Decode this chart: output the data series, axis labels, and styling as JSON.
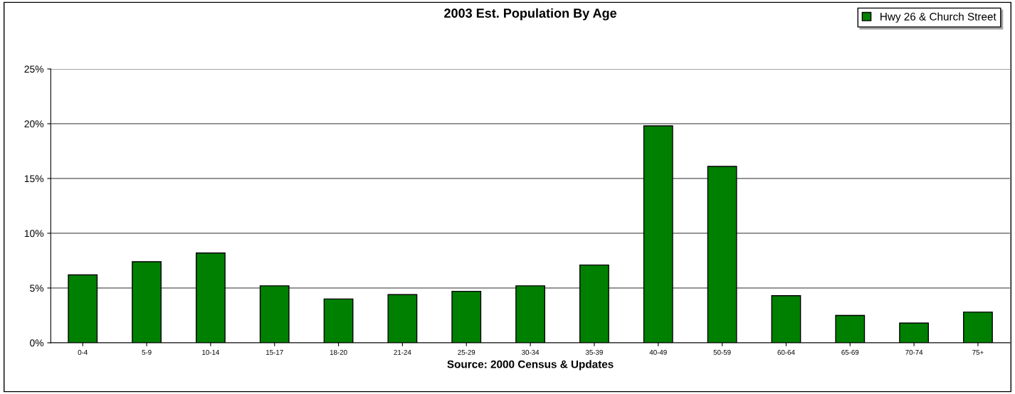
{
  "chart_data": {
    "type": "bar",
    "title": "2003 Est. Population By Age",
    "xlabel": "Source: 2000 Census & Updates",
    "categories": [
      "0-4",
      "5-9",
      "10-14",
      "15-17",
      "18-20",
      "21-24",
      "25-29",
      "30-34",
      "35-39",
      "40-49",
      "50-59",
      "60-64",
      "65-69",
      "70-74",
      "75+"
    ],
    "series": [
      {
        "name": "Hwy 26 & Church Street",
        "color": "#008000",
        "values": [
          6.2,
          7.4,
          8.2,
          5.2,
          4.0,
          4.4,
          4.7,
          5.2,
          7.1,
          19.8,
          16.1,
          4.3,
          2.5,
          1.8,
          2.8
        ]
      }
    ],
    "ylim": [
      0,
      25
    ],
    "yticks": [
      {
        "value": 0,
        "label": "0%"
      },
      {
        "value": 5,
        "label": "5%"
      },
      {
        "value": 10,
        "label": "10%"
      },
      {
        "value": 15,
        "label": "15%"
      },
      {
        "value": 20,
        "label": "20%"
      },
      {
        "value": 25,
        "label": "25%"
      }
    ],
    "grid": "y",
    "legend": "top right"
  }
}
